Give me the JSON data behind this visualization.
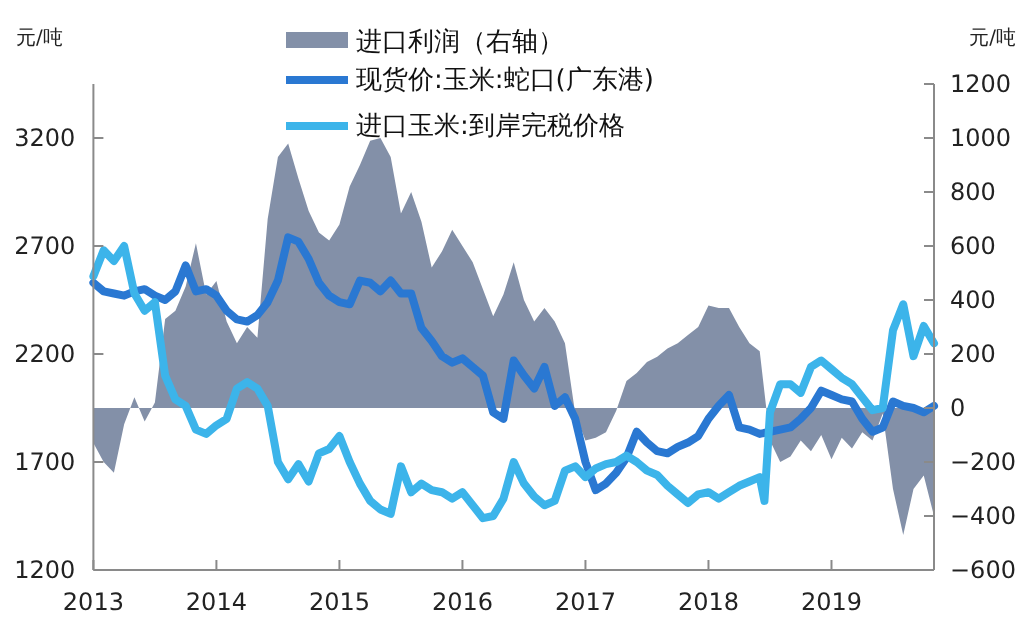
{
  "chart_data": {
    "type": "line",
    "ylabel": "元/吨",
    "y2label": "元/吨",
    "legend": "top",
    "x": [
      "2013-01",
      "2013-02",
      "2013-03",
      "2013-04",
      "2013-05",
      "2013-06",
      "2013-07",
      "2013-08",
      "2013-09",
      "2013-10",
      "2013-11",
      "2013-12",
      "2014-01",
      "2014-02",
      "2014-03",
      "2014-04",
      "2014-05",
      "2014-06",
      "2014-07",
      "2014-08",
      "2014-09",
      "2014-10",
      "2014-11",
      "2014-12",
      "2015-01",
      "2015-02",
      "2015-03",
      "2015-04",
      "2015-05",
      "2015-06",
      "2015-07",
      "2015-08",
      "2015-09",
      "2015-10",
      "2015-11",
      "2015-12",
      "2016-01",
      "2016-02",
      "2016-03",
      "2016-04",
      "2016-05",
      "2016-06",
      "2016-07",
      "2016-08",
      "2016-09",
      "2016-10",
      "2016-11",
      "2016-12",
      "2017-01",
      "2017-02",
      "2017-03",
      "2017-04",
      "2017-05",
      "2017-06",
      "2017-07",
      "2017-08",
      "2017-09",
      "2017-10",
      "2017-11",
      "2017-12",
      "2018-01",
      "2018-02",
      "2018-03",
      "2018-04",
      "2018-05",
      "2018-06",
      "2018-07",
      "2018-08",
      "2018-09",
      "2018-10",
      "2018-11",
      "2018-12",
      "2019-01",
      "2019-02",
      "2019-03",
      "2019-04",
      "2019-05",
      "2019-06",
      "2019-07",
      "2019-08",
      "2019-09",
      "2019-10",
      "2019-11"
    ],
    "xlim": [
      "2013",
      "2019-11"
    ],
    "xticks": [
      "2013",
      "2014",
      "2015",
      "2016",
      "2017",
      "2018",
      "2019"
    ],
    "ylim": [
      1200,
      3450
    ],
    "yticks": [
      1200,
      1700,
      2200,
      2700,
      3200
    ],
    "y2lim": [
      -600,
      1200
    ],
    "y2ticks": [
      -600,
      -400,
      -200,
      0,
      200,
      400,
      600,
      800,
      1000,
      1200
    ],
    "series": [
      {
        "name": "进口利润（右轴）",
        "type": "area",
        "axis": "y2",
        "color": "#8390a8",
        "values": [
          -130,
          -200,
          -240,
          -60,
          40,
          -50,
          20,
          330,
          360,
          450,
          610,
          420,
          470,
          320,
          240,
          300,
          260,
          700,
          930,
          980,
          850,
          730,
          650,
          620,
          680,
          820,
          900,
          990,
          1000,
          930,
          720,
          800,
          690,
          520,
          580,
          660,
          600,
          540,
          440,
          340,
          420,
          540,
          400,
          320,
          370,
          320,
          240,
          -20,
          -120,
          -110,
          -90,
          -10,
          100,
          130,
          170,
          190,
          220,
          240,
          270,
          300,
          380,
          370,
          370,
          300,
          240,
          210,
          -120,
          -200,
          -180,
          -120,
          -160,
          -100,
          -190,
          -110,
          -150,
          -90,
          -120,
          -20,
          -300,
          -470,
          -300,
          -250,
          -400
        ]
      },
      {
        "name": "现货价:玉米:蛇口(广东港)",
        "color": "#2a78d2",
        "values": [
          2530,
          2490,
          2480,
          2470,
          2490,
          2500,
          2470,
          2450,
          2490,
          2610,
          2490,
          2500,
          2470,
          2400,
          2360,
          2350,
          2380,
          2440,
          2540,
          2740,
          2720,
          2640,
          2530,
          2470,
          2440,
          2430,
          2540,
          2530,
          2490,
          2540,
          2480,
          2480,
          2320,
          2260,
          2190,
          2160,
          2180,
          2140,
          2100,
          1930,
          1900,
          2170,
          2100,
          2040,
          2140,
          1960,
          2000,
          1900,
          1700,
          1570,
          1600,
          1650,
          1720,
          1840,
          1790,
          1750,
          1740,
          1770,
          1790,
          1820,
          1900,
          1960,
          2010,
          1860,
          1850,
          1830,
          1840,
          1850,
          1860,
          1900,
          1950,
          2030,
          2010,
          1990,
          1980,
          1900,
          1840,
          1860,
          1980,
          1960,
          1950,
          1930,
          1960
        ]
      },
      {
        "name": "进口玉米:到岸完税价格",
        "color": "#3cb4ea",
        "x": [
          "2013-01",
          "2013-02",
          "2013-03",
          "2013-04",
          "2013-05",
          "2013-06",
          "2013-07",
          "2013-08",
          "2013-09",
          "2013-10",
          "2013-11",
          "2013-12",
          "2014-01",
          "2014-02",
          "2014-03",
          "2014-04",
          "2014-05",
          "2014-06",
          "2014-07",
          "2014-08",
          "2014-09",
          "2014-10",
          "2014-11",
          "2014-12",
          "2015-01",
          "2015-02",
          "2015-03",
          "2015-04",
          "2015-05",
          "2015-06",
          "2015-07",
          "2015-08",
          "2015-09",
          "2015-10",
          "2015-11",
          "2015-12",
          "2016-01",
          "2016-02",
          "2016-03",
          "2016-04",
          "2016-05",
          "2016-06",
          "2016-07",
          "2016-08",
          "2016-09",
          "2016-10",
          "2016-11",
          "2016-12",
          "2017-01",
          "2017-02",
          "2017-03",
          "2017-04",
          "2017-05",
          "2017-06",
          "2017-07",
          "2017-08",
          "2017-09",
          "2017-10",
          "2017-11",
          "2017-12",
          "2018-01",
          "2018-02",
          "2018-03",
          "2018-04",
          "2018-05",
          "2018-06",
          "2018-06-15",
          "2018-07",
          "2018-08",
          "2018-09",
          "2018-10",
          "2018-11",
          "2018-12",
          "2019-01",
          "2019-02",
          "2019-03",
          "2019-04",
          "2019-05",
          "2019-06",
          "2019-07",
          "2019-08",
          "2019-09",
          "2019-10",
          "2019-11"
        ],
        "values": [
          2560,
          2680,
          2630,
          2700,
          2480,
          2400,
          2440,
          2100,
          1990,
          1960,
          1850,
          1830,
          1870,
          1900,
          2040,
          2070,
          2040,
          1960,
          1700,
          1620,
          1690,
          1610,
          1740,
          1760,
          1820,
          1700,
          1600,
          1520,
          1480,
          1460,
          1680,
          1560,
          1600,
          1570,
          1560,
          1530,
          1560,
          1500,
          1440,
          1450,
          1530,
          1700,
          1600,
          1540,
          1500,
          1520,
          1660,
          1680,
          1630,
          1670,
          1690,
          1700,
          1730,
          1700,
          1660,
          1640,
          1590,
          1550,
          1510,
          1550,
          1560,
          1530,
          1560,
          1590,
          1610,
          1630,
          1520,
          1930,
          2060,
          2060,
          2020,
          2140,
          2170,
          2130,
          2090,
          2060,
          2000,
          1940,
          1950,
          2310,
          2430,
          2190,
          2330,
          2250
        ]
      }
    ]
  }
}
